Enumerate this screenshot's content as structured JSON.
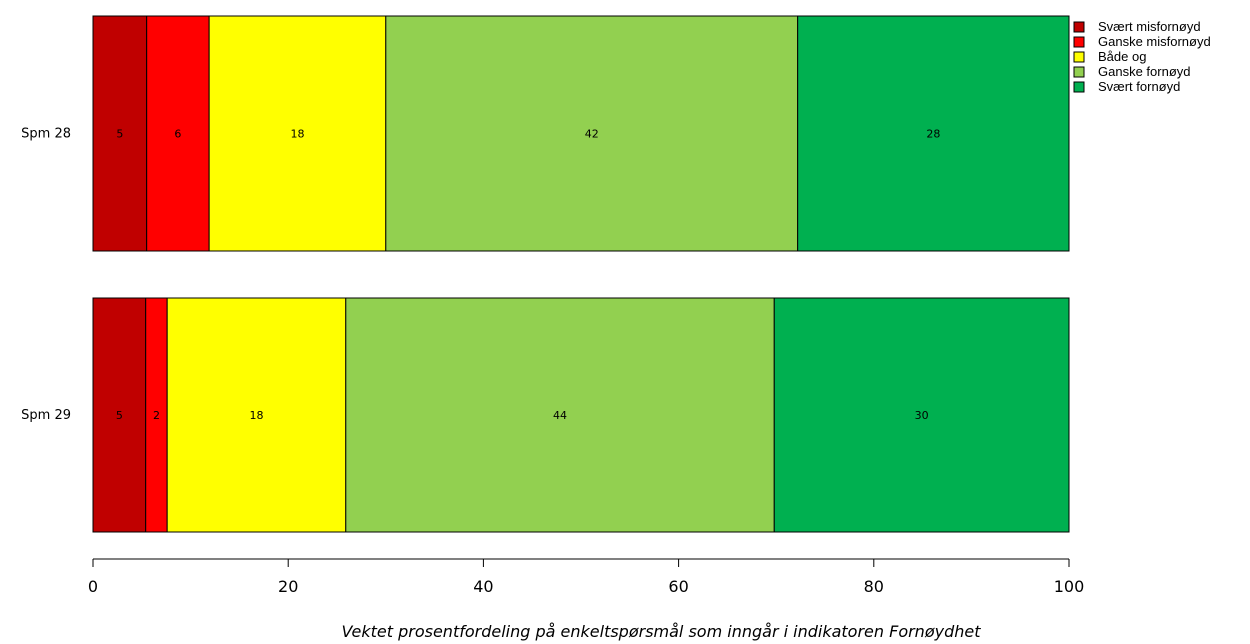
{
  "chart_data": {
    "type": "bar",
    "orientation": "horizontal",
    "stacked": true,
    "xlabel": "Vektet prosentfordeling på enkeltspørsmål som inngår i indikatoren Fornøydhet",
    "xlim": [
      0,
      100
    ],
    "xticks": [
      "0",
      "20",
      "40",
      "60",
      "80",
      "100"
    ],
    "categories": [
      "Spm 28",
      "Spm 29"
    ],
    "series": [
      {
        "name": "Svært misfornøyd",
        "color": "#c00000",
        "values": [
          5.5,
          5.4
        ],
        "labels": [
          "5",
          "5"
        ]
      },
      {
        "name": "Ganske misfornøyd",
        "color": "#ff0000",
        "values": [
          6.4,
          2.2
        ],
        "labels": [
          "6",
          "2"
        ]
      },
      {
        "name": "Både og",
        "color": "#ffff00",
        "values": [
          18.1,
          18.3
        ],
        "labels": [
          "18",
          "18"
        ]
      },
      {
        "name": "Ganske fornøyd",
        "color": "#92d050",
        "values": [
          42.2,
          43.9
        ],
        "labels": [
          "42",
          "44"
        ]
      },
      {
        "name": "Svært fornøyd",
        "color": "#00b050",
        "values": [
          27.8,
          30.2
        ],
        "labels": [
          "28",
          "30"
        ]
      }
    ],
    "legend_position": "top-right"
  }
}
